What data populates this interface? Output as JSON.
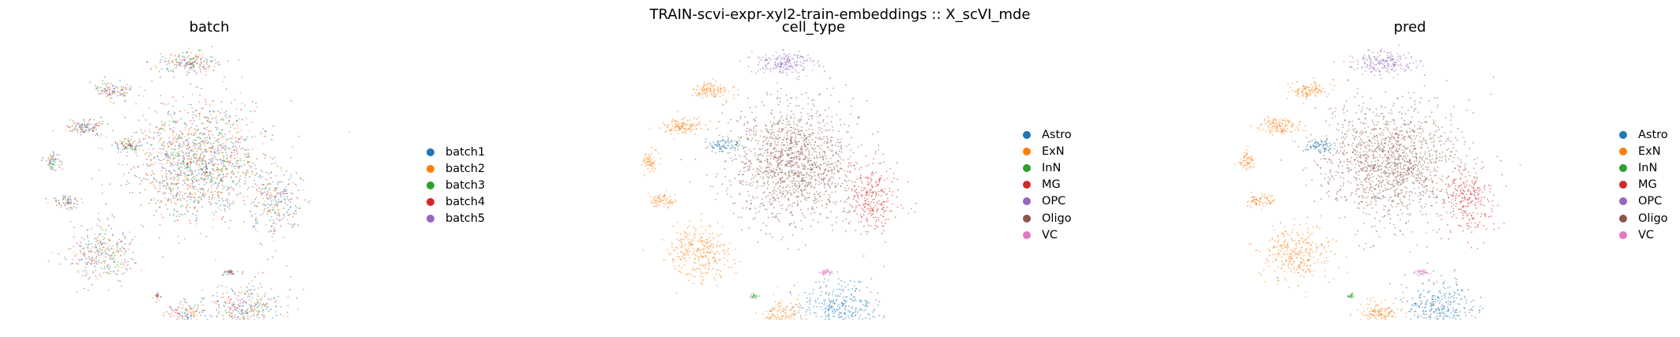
{
  "suptitle": "TRAIN-scvi-expr-xyl2-train-embeddings :: X_scVI_mde",
  "chart_data": [
    {
      "type": "scatter",
      "title": "batch",
      "legend": [
        {
          "label": "batch1",
          "color": "#1f77b4"
        },
        {
          "label": "batch2",
          "color": "#ff7f0e"
        },
        {
          "label": "batch3",
          "color": "#2ca02c"
        },
        {
          "label": "batch4",
          "color": "#d62728"
        },
        {
          "label": "batch5",
          "color": "#9467bd"
        }
      ],
      "legend_position": "right"
    },
    {
      "type": "scatter",
      "title": "cell_type",
      "legend": [
        {
          "label": "Astro",
          "color": "#1f77b4"
        },
        {
          "label": "ExN",
          "color": "#ff7f0e"
        },
        {
          "label": "InN",
          "color": "#2ca02c"
        },
        {
          "label": "MG",
          "color": "#d62728"
        },
        {
          "label": "OPC",
          "color": "#9467bd"
        },
        {
          "label": "Oligo",
          "color": "#8c564b"
        },
        {
          "label": "VC",
          "color": "#e377c2"
        }
      ],
      "legend_position": "right"
    },
    {
      "type": "scatter",
      "title": "pred",
      "legend": [
        {
          "label": "Astro",
          "color": "#1f77b4"
        },
        {
          "label": "ExN",
          "color": "#ff7f0e"
        },
        {
          "label": "InN",
          "color": "#2ca02c"
        },
        {
          "label": "MG",
          "color": "#d62728"
        },
        {
          "label": "OPC",
          "color": "#9467bd"
        },
        {
          "label": "Oligo",
          "color": "#8c564b"
        },
        {
          "label": "VC",
          "color": "#e377c2"
        }
      ],
      "legend_position": "right"
    }
  ]
}
